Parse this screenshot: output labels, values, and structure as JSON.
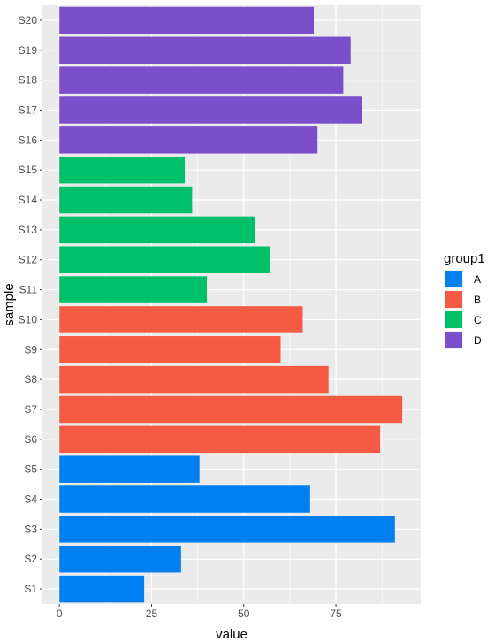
{
  "chart_data": {
    "type": "bar",
    "orientation": "horizontal",
    "categories": [
      "S1",
      "S2",
      "S3",
      "S4",
      "S5",
      "S6",
      "S7",
      "S8",
      "S9",
      "S10",
      "S11",
      "S12",
      "S13",
      "S14",
      "S15",
      "S16",
      "S17",
      "S18",
      "S19",
      "S20"
    ],
    "values": [
      23,
      33,
      91,
      68,
      38,
      87,
      93,
      73,
      60,
      66,
      40,
      57,
      53,
      36,
      34,
      70,
      82,
      77,
      79,
      69
    ],
    "groups": [
      "A",
      "A",
      "A",
      "A",
      "A",
      "B",
      "B",
      "B",
      "B",
      "B",
      "C",
      "C",
      "C",
      "C",
      "C",
      "D",
      "D",
      "D",
      "D",
      "D"
    ],
    "xlabel": "value",
    "ylabel": "sample",
    "xlim": [
      -4.6,
      98
    ],
    "xticks": [
      0,
      25,
      50,
      75
    ],
    "xtick_labels": [
      "0",
      "25",
      "50",
      "75"
    ],
    "grid": true,
    "legend": {
      "title": "group1",
      "placement": "right",
      "entries": [
        {
          "label": "A",
          "color": "#0080F0"
        },
        {
          "label": "B",
          "color": "#F55A42"
        },
        {
          "label": "C",
          "color": "#00BF69"
        },
        {
          "label": "D",
          "color": "#7B4FCC"
        }
      ]
    },
    "panel_background": "#EBEBEB",
    "grid_color": "#FFFFFF"
  }
}
